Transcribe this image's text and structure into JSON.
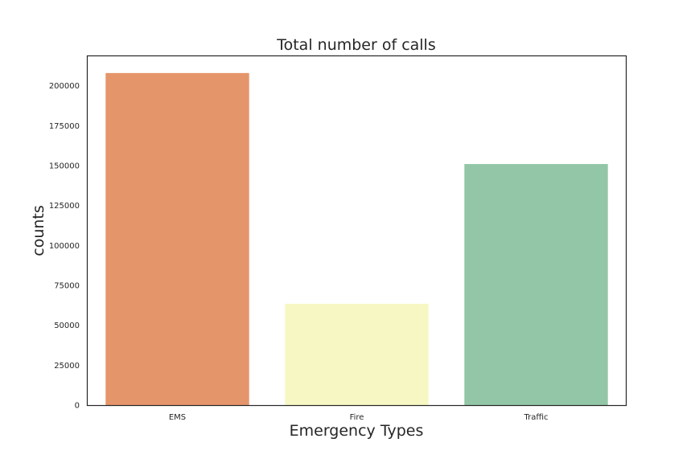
{
  "chart_data": {
    "type": "bar",
    "title": "Total number of calls",
    "xlabel": "Emergency Types",
    "ylabel": "counts",
    "categories": [
      "EMS",
      "Fire",
      "Traffic"
    ],
    "values": [
      208000,
      63500,
      151000
    ],
    "colors": [
      "#e5956a",
      "#f7f7c4",
      "#92c6a7"
    ],
    "ylim": [
      0,
      218500
    ],
    "yticks": [
      0,
      25000,
      50000,
      75000,
      100000,
      125000,
      150000,
      175000,
      200000
    ],
    "grid": false,
    "legend": "none"
  }
}
